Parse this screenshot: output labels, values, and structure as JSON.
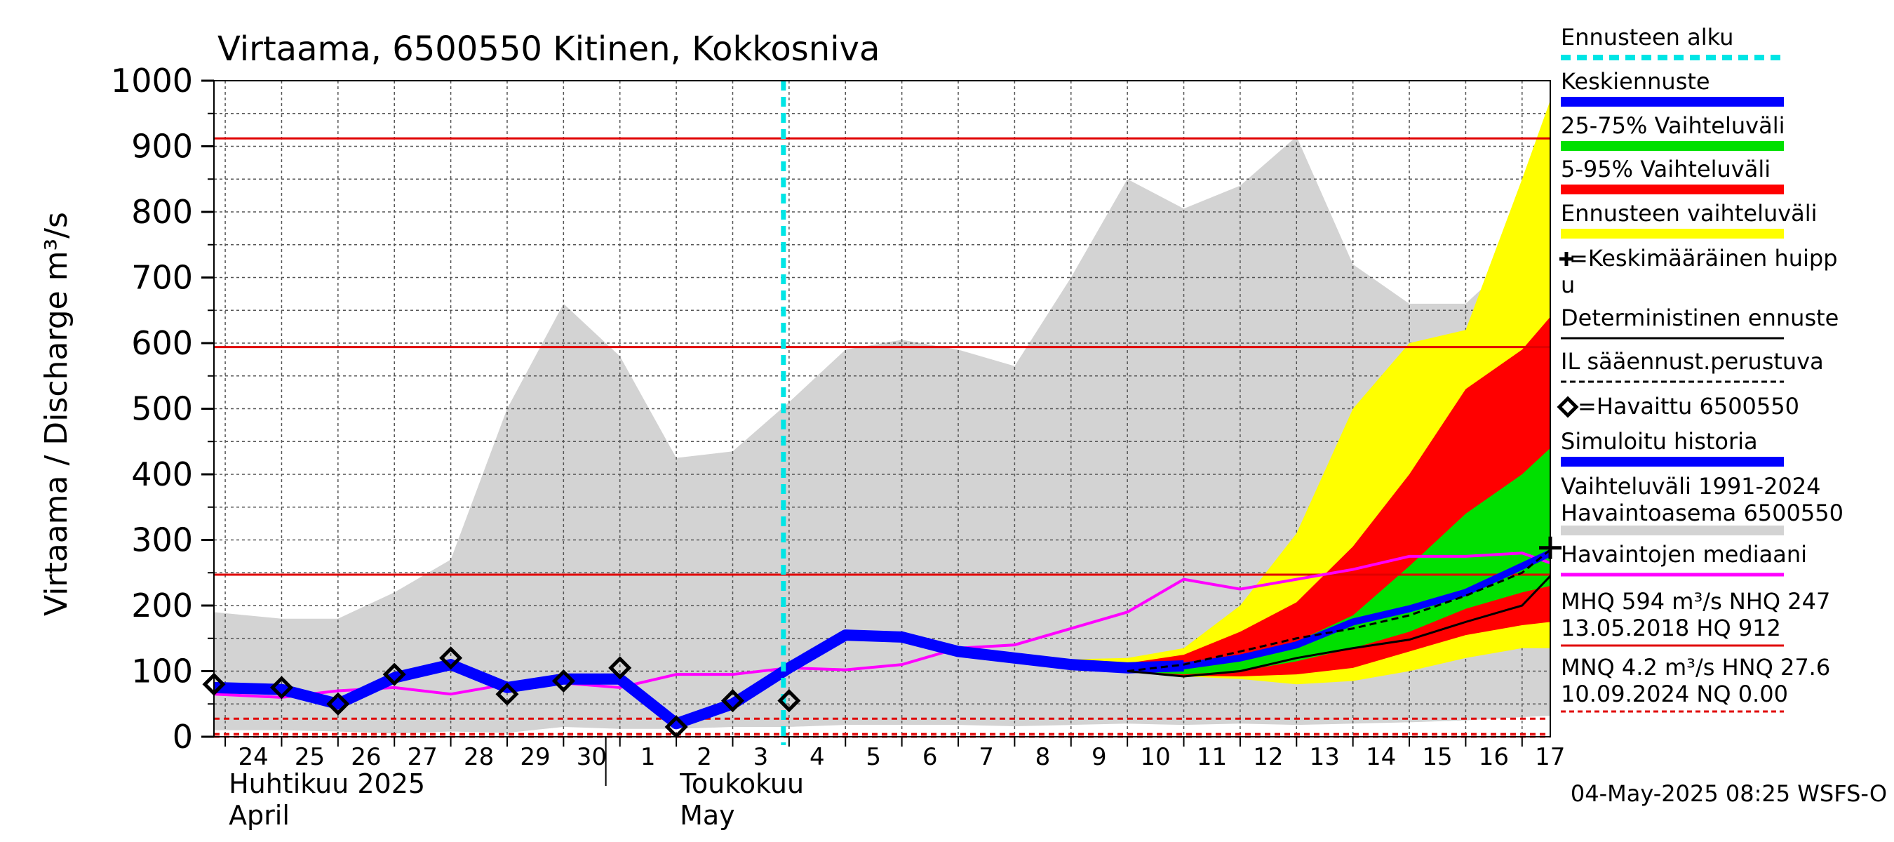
{
  "chart_data": {
    "type": "area",
    "title": "Virtaama, 6500550 Kitinen, Kokkosniva",
    "ylabel": "Virtaama / Discharge   m³/s",
    "ylim": [
      0,
      1000
    ],
    "yticks": [
      0,
      100,
      200,
      300,
      400,
      500,
      600,
      700,
      800,
      900,
      1000
    ],
    "x_range": [
      23.8,
      47.5
    ],
    "x_ticks": [
      {
        "x": 24,
        "label": "24"
      },
      {
        "x": 25,
        "label": "25"
      },
      {
        "x": 26,
        "label": "26"
      },
      {
        "x": 27,
        "label": "27"
      },
      {
        "x": 28,
        "label": "28"
      },
      {
        "x": 29,
        "label": "29"
      },
      {
        "x": 30,
        "label": "30"
      },
      {
        "x": 31,
        "label": "1"
      },
      {
        "x": 32,
        "label": "2"
      },
      {
        "x": 33,
        "label": "3"
      },
      {
        "x": 34,
        "label": "4"
      },
      {
        "x": 35,
        "label": "5"
      },
      {
        "x": 36,
        "label": "6"
      },
      {
        "x": 37,
        "label": "7"
      },
      {
        "x": 38,
        "label": "8"
      },
      {
        "x": 39,
        "label": "9"
      },
      {
        "x": 40,
        "label": "10"
      },
      {
        "x": 41,
        "label": "11"
      },
      {
        "x": 42,
        "label": "12"
      },
      {
        "x": 43,
        "label": "13"
      },
      {
        "x": 44,
        "label": "14"
      },
      {
        "x": 45,
        "label": "15"
      },
      {
        "x": 46,
        "label": "16"
      },
      {
        "x": 47,
        "label": "17"
      }
    ],
    "month_labels": [
      {
        "x": 24,
        "line1": "Huhtikuu  2025",
        "line2": "April"
      },
      {
        "x": 32,
        "line1": "Toukokuu",
        "line2": "May"
      }
    ],
    "month_divider_x": 30.75,
    "forecast_start_x": 33.9,
    "reference_lines": [
      {
        "value": 912,
        "color": "#e00000",
        "style": "solid"
      },
      {
        "value": 594,
        "color": "#e00000",
        "style": "solid"
      },
      {
        "value": 247,
        "color": "#e00000",
        "style": "solid"
      },
      {
        "value": 27.6,
        "color": "#e00000",
        "style": "dashed"
      },
      {
        "value": 4.2,
        "color": "#e00000",
        "style": "dashed"
      },
      {
        "value": 0,
        "color": "#e00000",
        "style": "dashed"
      }
    ],
    "history_band": {
      "x": [
        23.8,
        25,
        26,
        27,
        28,
        29,
        30,
        31,
        32,
        33,
        34,
        35,
        36,
        37,
        38,
        39,
        40,
        41,
        42,
        43,
        44,
        45,
        46,
        47,
        47.5
      ],
      "upper": [
        190,
        180,
        180,
        220,
        270,
        500,
        660,
        580,
        425,
        435,
        510,
        590,
        605,
        590,
        565,
        700,
        850,
        805,
        840,
        915,
        720,
        660,
        660,
        740,
        745
      ],
      "lower": [
        10,
        10,
        8,
        5,
        8,
        6,
        15,
        12,
        12,
        15,
        15,
        18,
        18,
        18,
        16,
        18,
        20,
        18,
        20,
        18,
        20,
        22,
        25,
        30,
        32
      ]
    },
    "forecast_bands": {
      "x": [
        38,
        39,
        40,
        41,
        42,
        43,
        44,
        45,
        46,
        47,
        47.5
      ],
      "p0_100": {
        "upper": [
          120,
          118,
          120,
          135,
          200,
          310,
          500,
          600,
          620,
          850,
          970
        ],
        "lower": [
          118,
          108,
          100,
          92,
          88,
          80,
          85,
          100,
          120,
          135,
          135
        ]
      },
      "p5_95": {
        "upper": [
          120,
          115,
          112,
          125,
          160,
          205,
          290,
          400,
          530,
          590,
          640
        ],
        "lower": [
          118,
          108,
          100,
          93,
          92,
          95,
          105,
          130,
          155,
          170,
          175
        ]
      },
      "p25_75": {
        "upper": [
          120,
          112,
          108,
          110,
          125,
          145,
          185,
          260,
          340,
          400,
          440
        ],
        "lower": [
          118,
          108,
          100,
          95,
          100,
          115,
          135,
          160,
          195,
          220,
          230
        ]
      }
    },
    "series": [
      {
        "name": "Havaintojen mediaani",
        "color": "#ff00ff",
        "x": [
          23.8,
          25,
          26,
          27,
          28,
          29,
          30,
          31,
          32,
          33,
          34,
          35,
          36,
          37,
          38,
          39,
          40,
          41,
          42,
          43,
          44,
          45,
          46,
          47,
          47.5
        ],
        "y": [
          65,
          60,
          70,
          75,
          65,
          80,
          82,
          75,
          95,
          95,
          105,
          102,
          110,
          135,
          140,
          165,
          190,
          240,
          225,
          240,
          255,
          275,
          275,
          280,
          265
        ]
      },
      {
        "name": "Simuloitu historia",
        "color": "#0000ff",
        "x": [
          23.8,
          25,
          26,
          27,
          28,
          29,
          30,
          31,
          32,
          33,
          34,
          35,
          36,
          37,
          38,
          39,
          40,
          41
        ],
        "y": [
          75,
          72,
          50,
          90,
          110,
          75,
          88,
          88,
          20,
          50,
          105,
          155,
          152,
          130,
          120,
          110,
          105,
          108
        ]
      },
      {
        "name": "Keskiennuste",
        "color": "#0000ff",
        "x": [
          40,
          41,
          42,
          43,
          44,
          45,
          46,
          47,
          47.5
        ],
        "y": [
          105,
          108,
          120,
          140,
          175,
          195,
          220,
          260,
          280
        ]
      },
      {
        "name": "Deterministinen ennuste",
        "color": "#000000",
        "x": [
          40,
          41,
          42,
          43,
          44,
          45,
          46,
          47,
          47.5
        ],
        "y": [
          100,
          92,
          100,
          120,
          135,
          148,
          175,
          200,
          245
        ]
      },
      {
        "name": "IL sääennust.perustuva",
        "color": "#000000",
        "x": [
          40,
          41,
          42,
          43,
          44,
          45,
          46,
          47,
          47.5
        ],
        "y": [
          100,
          110,
          130,
          150,
          165,
          185,
          215,
          250,
          285
        ]
      }
    ],
    "observed": {
      "name": "=Havaittu 6500550",
      "x": [
        23.8,
        25,
        26,
        27,
        28,
        29,
        30,
        31,
        32,
        33,
        34
      ],
      "y": [
        80,
        75,
        50,
        95,
        120,
        65,
        85,
        105,
        15,
        55,
        55
      ]
    },
    "mean_peak": {
      "x": 47.5,
      "y": 288
    },
    "legend": [
      {
        "label": "Ennusteen alku",
        "color": "#00e5e5",
        "kind": "dashed-thick"
      },
      {
        "label": "Keskiennuste",
        "color": "#0000ff",
        "kind": "thick"
      },
      {
        "label": "25-75% Vaihteluväli",
        "color": "#00e000",
        "kind": "thick"
      },
      {
        "label": "5-95% Vaihteluväli",
        "color": "#ff0000",
        "kind": "thick"
      },
      {
        "label": "Ennusteen vaihteluväli",
        "color": "#ffff00",
        "kind": "thick"
      },
      {
        "label": "=Keskimääräinen huipp",
        "label2": "u",
        "color": "#000000",
        "kind": "plus"
      },
      {
        "label": "Deterministinen ennuste",
        "color": "#000000",
        "kind": "thin"
      },
      {
        "label": "IL sääennust.perustuva",
        "color": "#000000",
        "kind": "dashed"
      },
      {
        "label": "=Havaittu 6500550",
        "color": "#000000",
        "kind": "diamond"
      },
      {
        "label": "Simuloitu historia",
        "color": "#0000ff",
        "kind": "thick"
      },
      {
        "label": "Vaihteluväli 1991-2024",
        "label2": " Havaintoasema 6500550",
        "color": "#d3d3d3",
        "kind": "thick"
      },
      {
        "label": "Havaintojen mediaani",
        "color": "#ff00ff",
        "kind": "mid"
      },
      {
        "label": "MHQ  594 m³/s NHQ  247",
        "label2": "13.05.2018 HQ  912",
        "color": "#e00000",
        "kind": "thin"
      },
      {
        "label": "MNQ  4.2 m³/s HNQ 27.6",
        "label2": "10.09.2024 NQ 0.00",
        "color": "#e00000",
        "kind": "dashed-thin"
      }
    ]
  },
  "footer": "04-May-2025 08:25 WSFS-O"
}
